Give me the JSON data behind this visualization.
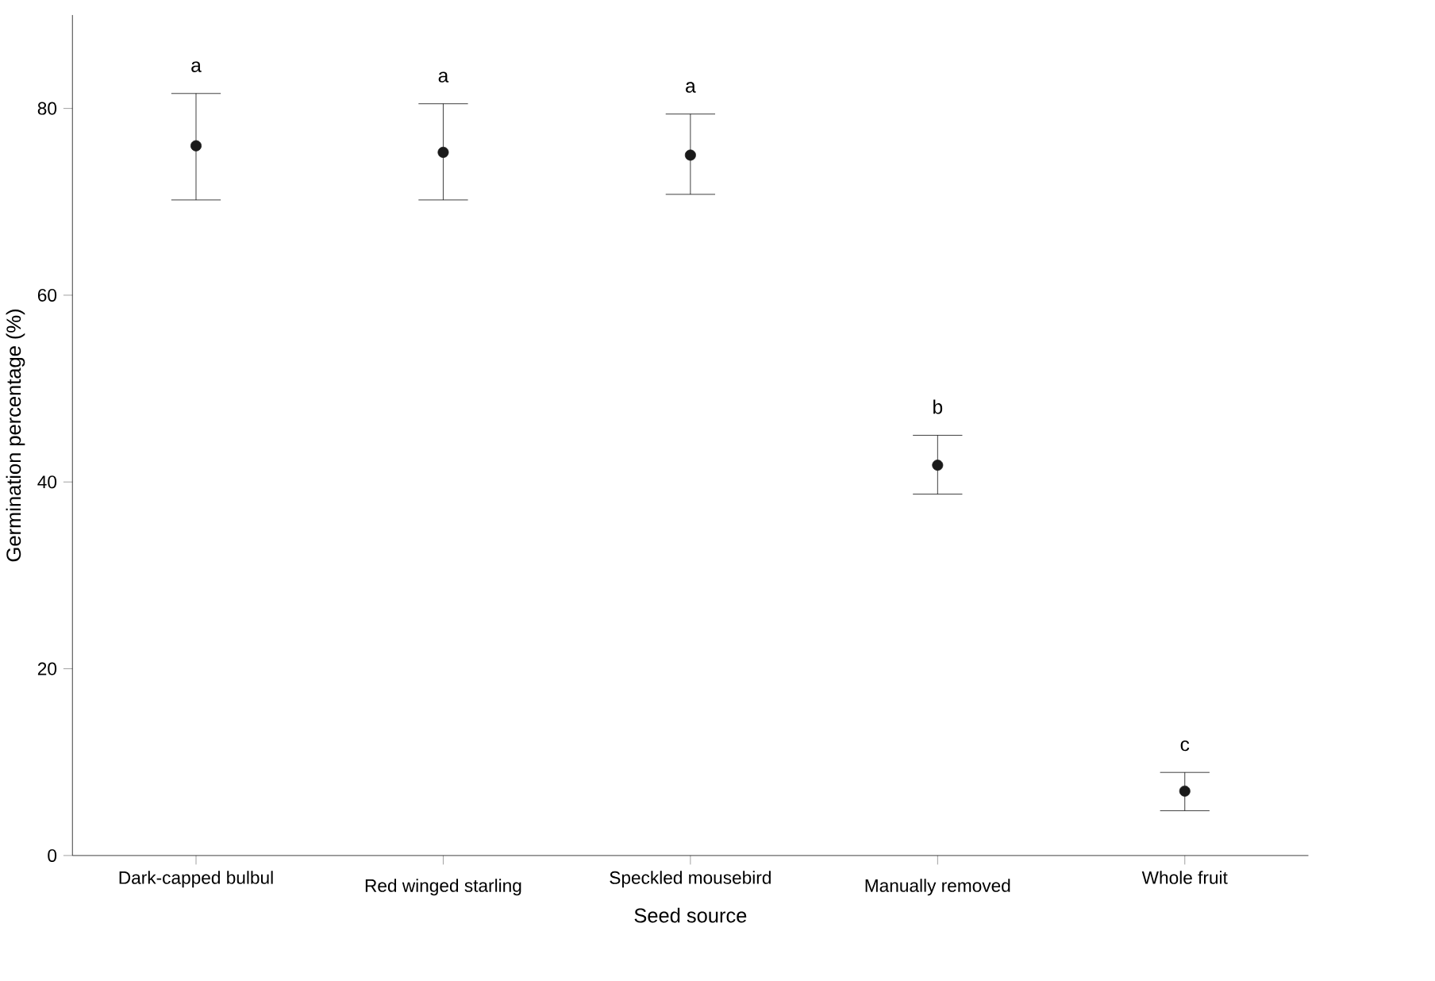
{
  "chart_data": {
    "type": "scatter",
    "xlabel": "Seed source",
    "ylabel": "Germination percentage (%)",
    "categories": [
      "Dark-capped bulbul",
      "Red winged starling",
      "Speckled mousebird",
      "Manually removed",
      "Whole fruit"
    ],
    "values": [
      76.0,
      75.3,
      75.0,
      41.8,
      6.9
    ],
    "errors": [
      [
        70.2,
        81.6
      ],
      [
        70.2,
        80.5
      ],
      [
        70.8,
        79.4
      ],
      [
        38.7,
        45.0
      ],
      [
        4.8,
        8.9
      ]
    ],
    "color": "#1a1a1a",
    "marker": "circle",
    "ylim": [
      0,
      90
    ],
    "yticks": [
      0,
      20,
      40,
      60,
      80
    ],
    "grid": false,
    "annotations": [
      "a",
      "a",
      "a",
      "b",
      "c"
    ]
  }
}
